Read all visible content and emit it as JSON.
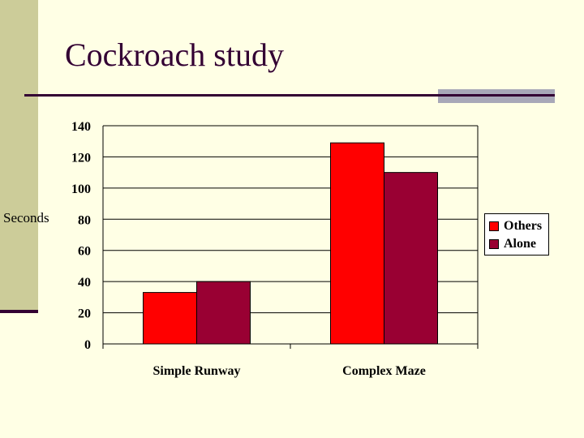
{
  "slide": {
    "title": "Cockroach study"
  },
  "colors": {
    "background": "#FFFFE5",
    "band": "#CCCC99",
    "accent_dark": "#330033",
    "accent_grey": "#A8A8B8"
  },
  "chart_data": {
    "type": "bar",
    "title": "",
    "xlabel": "",
    "ylabel": "Seconds",
    "categories": [
      "Simple Runway",
      "Complex Maze"
    ],
    "series": [
      {
        "name": "Others",
        "color": "#FF0000",
        "values": [
          33,
          129
        ]
      },
      {
        "name": "Alone",
        "color": "#990033",
        "values": [
          40,
          110
        ]
      }
    ],
    "ylim": [
      0,
      140
    ],
    "yticks": [
      0,
      20,
      40,
      60,
      80,
      100,
      120,
      140
    ],
    "grid": true,
    "legend_position": "right"
  }
}
